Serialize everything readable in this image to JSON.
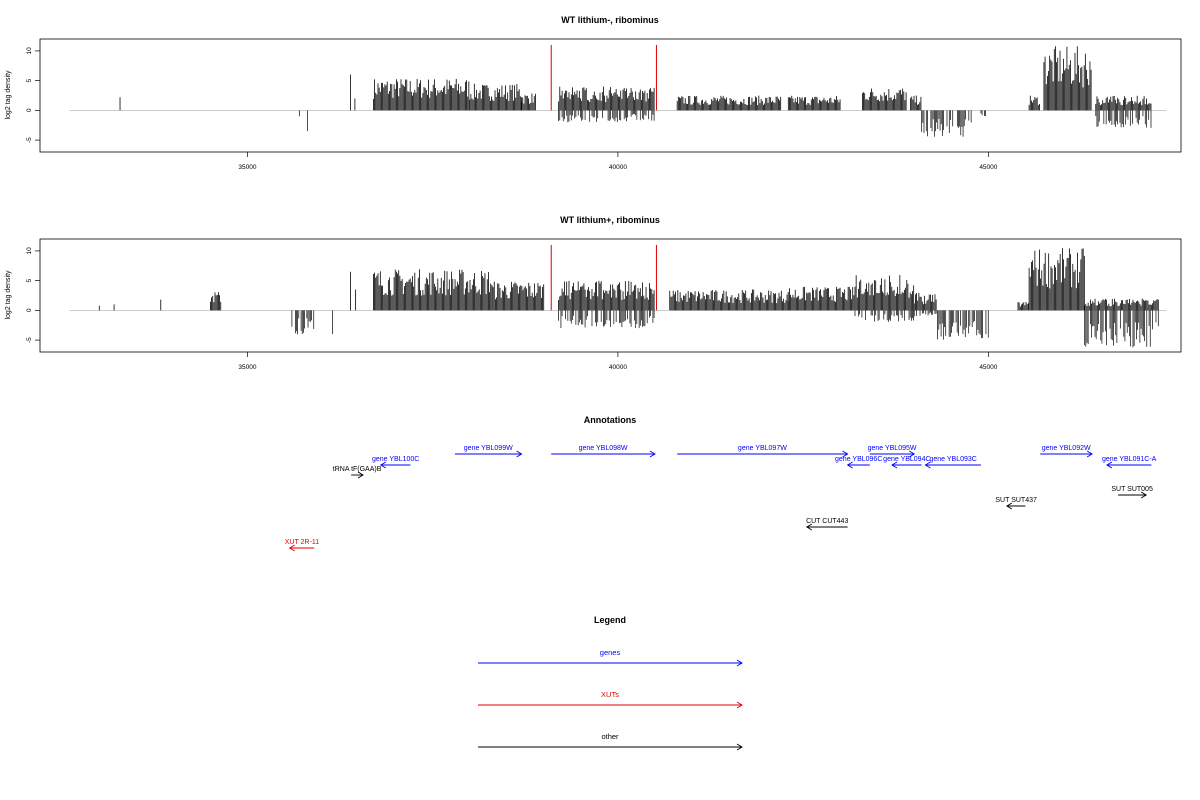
{
  "chart_data": [
    {
      "type": "bar",
      "title": "WT lithium-, ribominus",
      "xlabel": "",
      "ylabel": "log2 tag density",
      "xlim": [
        32200,
        47600
      ],
      "ylim": [
        -7,
        12
      ],
      "xticks": [
        35000,
        40000,
        45000
      ],
      "yticks": [
        -5,
        0,
        5,
        10
      ],
      "baseline_color": "#bbbbbb",
      "bar_color": "#000000",
      "highlight_color": "#e00000",
      "highlight_positions": [
        39100,
        40520
      ],
      "highlight_height": 11,
      "signal": [
        {
          "from": 33280,
          "to": 33320,
          "top": 2.2,
          "bottom": 0
        },
        {
          "from": 35700,
          "to": 35720,
          "top": 0,
          "bottom": -1
        },
        {
          "from": 35810,
          "to": 35830,
          "top": 0,
          "bottom": -3.5
        },
        {
          "from": 36390,
          "to": 36410,
          "top": 6,
          "bottom": 0
        },
        {
          "from": 36450,
          "to": 36470,
          "top": 2,
          "bottom": 0
        },
        {
          "from": 36700,
          "to": 38000,
          "top": 5.5,
          "bottom": 0
        },
        {
          "from": 38000,
          "to": 38700,
          "top": 4.5,
          "bottom": 0
        },
        {
          "from": 38700,
          "to": 38900,
          "top": 3,
          "bottom": 0
        },
        {
          "from": 39200,
          "to": 40500,
          "top": 4,
          "bottom": -2
        },
        {
          "from": 40800,
          "to": 42200,
          "top": 2.5,
          "bottom": 0
        },
        {
          "from": 42300,
          "to": 43000,
          "top": 2.5,
          "bottom": 0
        },
        {
          "from": 43300,
          "to": 43900,
          "top": 4,
          "bottom": 0
        },
        {
          "from": 43950,
          "to": 44100,
          "top": 2.5,
          "bottom": 0
        },
        {
          "from": 44100,
          "to": 44800,
          "top": 0,
          "bottom": -4.5
        },
        {
          "from": 44900,
          "to": 45000,
          "top": 0,
          "bottom": -1
        },
        {
          "from": 45550,
          "to": 45700,
          "top": 2.5,
          "bottom": 0
        },
        {
          "from": 45750,
          "to": 46400,
          "top": 10.8,
          "bottom": 0
        },
        {
          "from": 46450,
          "to": 47200,
          "top": 2.5,
          "bottom": -3
        }
      ]
    },
    {
      "type": "bar",
      "title": "WT lithium+, ribominus",
      "xlabel": "",
      "ylabel": "log2 tag density",
      "xlim": [
        32200,
        47600
      ],
      "ylim": [
        -7,
        12
      ],
      "xticks": [
        35000,
        40000,
        45000
      ],
      "yticks": [
        -5,
        0,
        5,
        10
      ],
      "baseline_color": "#bbbbbb",
      "bar_color": "#000000",
      "highlight_color": "#e00000",
      "highlight_positions": [
        39100,
        40520
      ],
      "highlight_height": 11,
      "signal": [
        {
          "from": 33000,
          "to": 33020,
          "top": 0.8,
          "bottom": 0
        },
        {
          "from": 33200,
          "to": 33220,
          "top": 1,
          "bottom": 0
        },
        {
          "from": 33830,
          "to": 33850,
          "top": 1.8,
          "bottom": 0
        },
        {
          "from": 34500,
          "to": 34650,
          "top": 3.2,
          "bottom": 0
        },
        {
          "from": 35600,
          "to": 35900,
          "top": 0,
          "bottom": -4.5
        },
        {
          "from": 36150,
          "to": 36170,
          "top": 0,
          "bottom": -4
        },
        {
          "from": 36390,
          "to": 36410,
          "top": 6.5,
          "bottom": 0
        },
        {
          "from": 36460,
          "to": 36480,
          "top": 3.5,
          "bottom": 0
        },
        {
          "from": 36700,
          "to": 38300,
          "top": 7,
          "bottom": 0
        },
        {
          "from": 38300,
          "to": 39000,
          "top": 5,
          "bottom": 0
        },
        {
          "from": 39200,
          "to": 40500,
          "top": 5,
          "bottom": -3
        },
        {
          "from": 40700,
          "to": 42300,
          "top": 3.5,
          "bottom": 0
        },
        {
          "from": 42300,
          "to": 43200,
          "top": 4,
          "bottom": 0
        },
        {
          "from": 43200,
          "to": 44000,
          "top": 6,
          "bottom": -2
        },
        {
          "from": 44000,
          "to": 44300,
          "top": 3,
          "bottom": -1
        },
        {
          "from": 44300,
          "to": 45000,
          "top": 0,
          "bottom": -5
        },
        {
          "from": 45400,
          "to": 45550,
          "top": 1.5,
          "bottom": 0
        },
        {
          "from": 45550,
          "to": 46300,
          "top": 10.5,
          "bottom": 0
        },
        {
          "from": 46300,
          "to": 47300,
          "top": 2,
          "bottom": -6.5
        }
      ]
    }
  ],
  "annotations": {
    "title": "Annotations",
    "features": [
      {
        "label": "gene YBL099W",
        "class": "genes",
        "start": 37800,
        "end": 38700,
        "strand": "+",
        "row": 0
      },
      {
        "label": "gene YBL098W",
        "class": "genes",
        "start": 39100,
        "end": 40500,
        "strand": "+",
        "row": 0
      },
      {
        "label": "gene YBL097W",
        "class": "genes",
        "start": 40800,
        "end": 43100,
        "strand": "+",
        "row": 0
      },
      {
        "label": "gene YBL095W",
        "class": "genes",
        "start": 43400,
        "end": 44000,
        "strand": "+",
        "row": 0
      },
      {
        "label": "gene YBL092W",
        "class": "genes",
        "start": 45700,
        "end": 46400,
        "strand": "+",
        "row": 0
      },
      {
        "label": "gene YBL100C",
        "class": "genes",
        "start": 36800,
        "end": 37200,
        "strand": "-",
        "row": 1
      },
      {
        "label": "gene YBL096C",
        "class": "genes",
        "start": 43100,
        "end": 43400,
        "strand": "-",
        "row": 1
      },
      {
        "label": "gene YBL094C",
        "class": "genes",
        "start": 43700,
        "end": 44100,
        "strand": "-",
        "row": 1
      },
      {
        "label": "gene YBL093C",
        "class": "genes",
        "start": 44150,
        "end": 44900,
        "strand": "-",
        "row": 1
      },
      {
        "label": "gene YBL091C-A",
        "class": "genes",
        "start": 46600,
        "end": 47200,
        "strand": "-",
        "row": 1
      },
      {
        "label": "tRNA tF(GAA)B",
        "class": "other",
        "start": 36400,
        "end": 36560,
        "strand": "+",
        "row": 2
      },
      {
        "label": "SUT SUT005",
        "class": "other",
        "start": 46750,
        "end": 47130,
        "strand": "+",
        "row": 3
      },
      {
        "label": "SUT SUT437",
        "class": "other",
        "start": 45250,
        "end": 45500,
        "strand": "-",
        "row": 4
      },
      {
        "label": "CUT CUT443",
        "class": "other",
        "start": 42550,
        "end": 43100,
        "strand": "-",
        "row": 5
      },
      {
        "label": "XUT 2R-11",
        "class": "XUTs",
        "start": 35570,
        "end": 35900,
        "strand": "-",
        "row": 6
      }
    ]
  },
  "legend": {
    "title": "Legend",
    "items": [
      {
        "label": "genes",
        "color": "#0000ff"
      },
      {
        "label": "XUTs",
        "color": "#e00000"
      },
      {
        "label": "other",
        "color": "#000000"
      }
    ]
  },
  "colors": {
    "genes": "#0000ff",
    "XUTs": "#e00000",
    "other": "#000000"
  }
}
